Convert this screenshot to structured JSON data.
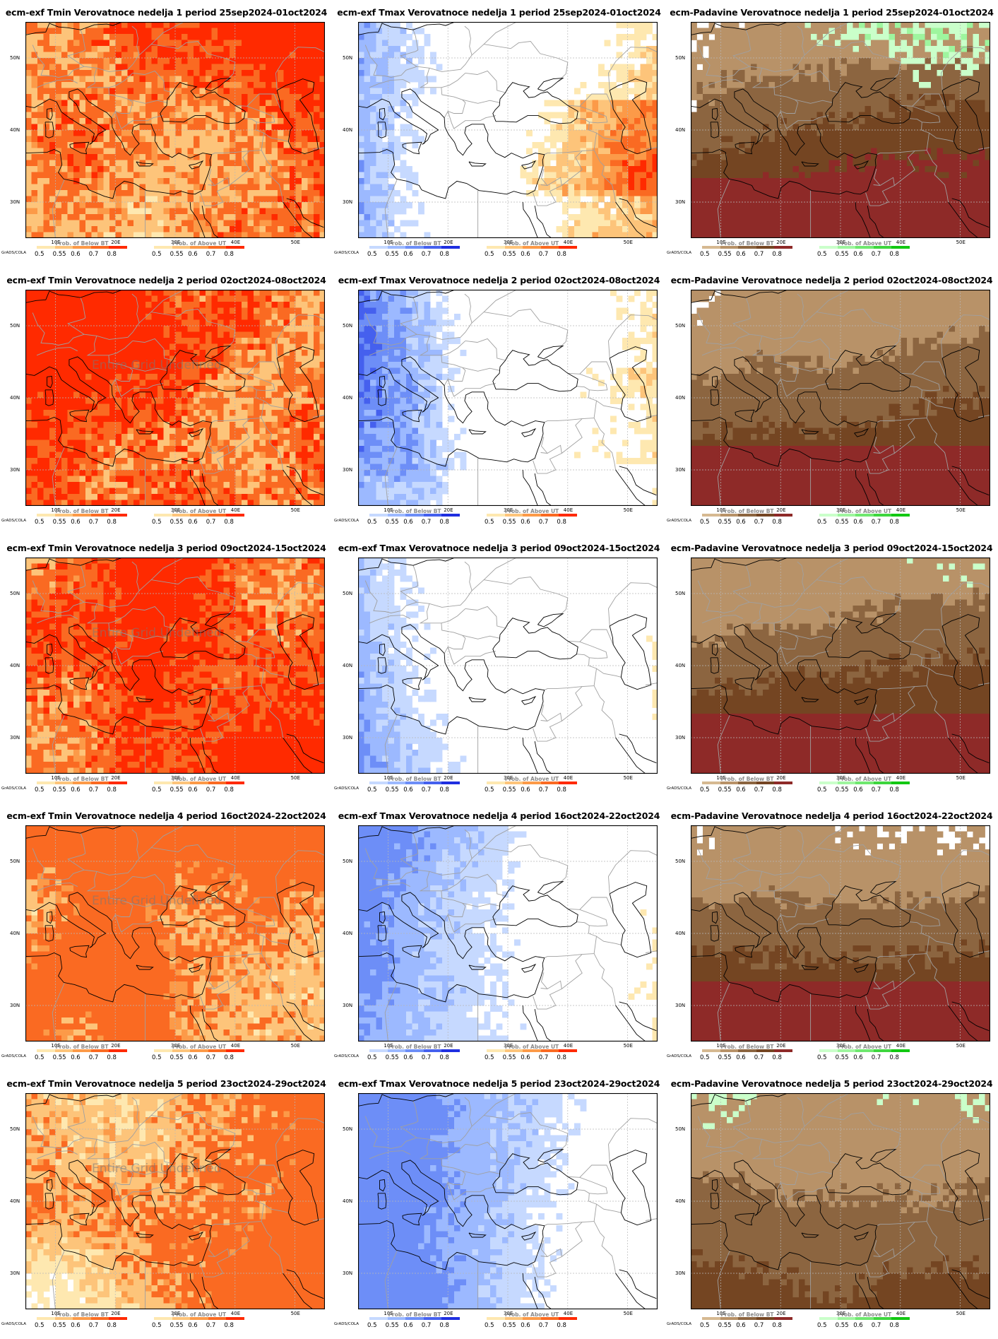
{
  "grads_label": "GrADS/COLA",
  "lat_labels": [
    "50N",
    "40N",
    "30N"
  ],
  "lon_labels": [
    "10E",
    "20E",
    "30E",
    "40E",
    "50E"
  ],
  "undefined_text": "Entire Grid Undefined",
  "legend": {
    "below_title": "Prob. of Below BT",
    "above_title": "Prob. of Above UT",
    "ticks": [
      "0.5",
      "0.55",
      "0.6",
      "0.7",
      "0.8"
    ]
  },
  "colors": {
    "warm": [
      "#fee8b0",
      "#fdc47a",
      "#fc9a48",
      "#fa6a22",
      "#ff2a00"
    ],
    "cool": [
      "#c6d9ff",
      "#9cb9ff",
      "#6d8ef7",
      "#4560ee",
      "#1f2fe0"
    ],
    "dry": [
      "#d6b991",
      "#b89268",
      "#8c6540",
      "#744522",
      "#8e2a28"
    ],
    "wet": [
      "#caffca",
      "#9ef59e",
      "#6fe86f",
      "#3ed63e",
      "#12c812"
    ],
    "coast": "#000000",
    "borders": "#a0a0a0",
    "gridlines": "#b8b8b8"
  },
  "rows": [
    {
      "week": "1",
      "titles": [
        "ecm-exf Tmin Verovatnoce nedelja 1 period 25sep2024-01oct2024",
        "ecm-exf Tmax Verovatnoce nedelja 1 period 25sep2024-01oct2024",
        "ecm-Padavine Verovatnoce nedelja 1 period 25sep2024-01oct2024"
      ],
      "tmin_level": 5,
      "tmin_cover": 0.88,
      "tmin_undefined": false,
      "tmax_warm_level": 5,
      "tmax_warm_cover": 0.34,
      "tmax_cool_level": 5,
      "tmax_cool_cover": 0.18,
      "prec_dry_level": 5,
      "prec_dry_cover": 0.78,
      "prec_wet_level": 5,
      "prec_wet_cover": 0.12
    },
    {
      "week": "2",
      "titles": [
        "ecm-exf Tmin Verovatnoce nedelja 2 period 02oct2024-08oct2024",
        "ecm-exf Tmax Verovatnoce nedelja 2 period 02oct2024-08oct2024",
        "ecm-Padavine Verovatnoce nedelja 2 period 02oct2024-08oct2024"
      ],
      "tmin_level": 5,
      "tmin_cover": 0.82,
      "tmin_undefined": true,
      "tmax_warm_level": 4,
      "tmax_warm_cover": 0.22,
      "tmax_cool_level": 5,
      "tmax_cool_cover": 0.22,
      "prec_dry_level": 4,
      "prec_dry_cover": 0.86,
      "prec_wet_level": 2,
      "prec_wet_cover": 0.03
    },
    {
      "week": "3",
      "titles": [
        "ecm-exf Tmin Verovatnoce nedelja 3 period 09oct2024-15oct2024",
        "ecm-exf Tmax Verovatnoce nedelja 3 period 09oct2024-15oct2024",
        "ecm-Padavine Verovatnoce nedelja 3 period 09oct2024-15oct2024"
      ],
      "tmin_level": 5,
      "tmin_cover": 0.92,
      "tmin_undefined": true,
      "tmax_warm_level": 2,
      "tmax_warm_cover": 0.1,
      "tmax_cool_level": 4,
      "tmax_cool_cover": 0.2,
      "prec_dry_level": 4,
      "prec_dry_cover": 0.85,
      "prec_wet_level": 1,
      "prec_wet_cover": 0.05
    },
    {
      "week": "4",
      "titles": [
        "ecm-exf Tmin Verovatnoce nedelja 4 period 16oct2024-22oct2024",
        "ecm-exf Tmax Verovatnoce nedelja 4 period 16oct2024-22oct2024",
        "ecm-Padavine Verovatnoce nedelja 4 period 16oct2024-22oct2024"
      ],
      "tmin_level": 4,
      "tmin_cover": 0.9,
      "tmin_undefined": true,
      "tmax_warm_level": 2,
      "tmax_warm_cover": 0.08,
      "tmax_cool_level": 3,
      "tmax_cool_cover": 0.3,
      "prec_dry_level": 4,
      "prec_dry_cover": 0.78,
      "prec_wet_level": 2,
      "prec_wet_cover": 0.06
    },
    {
      "week": "5",
      "titles": [
        "ecm-exf Tmin Verovatnoce nedelja 5 period 23oct2024-29oct2024",
        "ecm-exf Tmax Verovatnoce nedelja 5 period 23oct2024-29oct2024",
        "ecm-Padavine Verovatnoce nedelja 5 period 23oct2024-29oct2024"
      ],
      "tmin_level": 4,
      "tmin_cover": 0.86,
      "tmin_undefined": true,
      "tmax_warm_level": 1,
      "tmax_warm_cover": 0.04,
      "tmax_cool_level": 3,
      "tmax_cool_cover": 0.36,
      "prec_dry_level": 3,
      "prec_dry_cover": 0.8,
      "prec_wet_level": 2,
      "prec_wet_cover": 0.07
    }
  ]
}
